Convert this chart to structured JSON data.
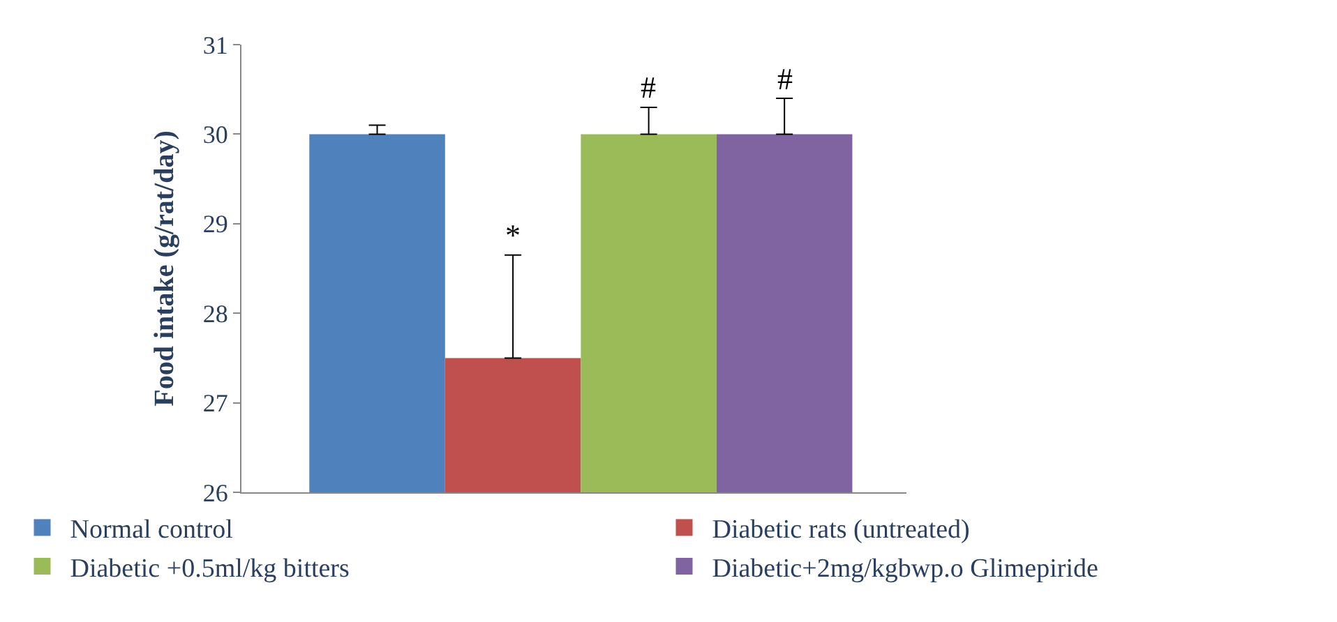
{
  "chart_data": {
    "type": "bar",
    "ylabel": "Food intake (g/rat/day)",
    "categories": [
      null,
      null,
      null,
      null
    ],
    "series": [
      {
        "name": "Normal control",
        "color": "#4f81bd",
        "values": [
          30,
          null,
          null,
          null
        ],
        "errors": [
          [
            30,
            30.1
          ],
          null,
          null,
          null
        ]
      },
      {
        "name": "Diabetic rats (untreated)",
        "color": "#c0504d",
        "values": [
          null,
          27.5,
          null,
          null
        ],
        "errors": [
          null,
          [
            27.5,
            28.65
          ],
          null,
          null
        ]
      },
      {
        "name": "Diabetic +0.5ml/kg bitters",
        "color": "#9bbb59",
        "values": [
          null,
          null,
          30,
          null
        ],
        "errors": [
          null,
          null,
          [
            30,
            30.3
          ],
          null
        ]
      },
      {
        "name": "Diabetic+2mg/kgbwp.o Glimepiride",
        "color": "#8064a2",
        "values": [
          null,
          null,
          null,
          30
        ],
        "errors": [
          null,
          null,
          null,
          [
            30,
            30.4
          ]
        ]
      }
    ],
    "ylim": [
      26,
      31
    ],
    "yticks": [
      26,
      27,
      28,
      29,
      30,
      31
    ],
    "legend": "bottom",
    "annotations": [
      {
        "text": "*",
        "y": 28.65
      },
      {
        "text": "#",
        "y": 30.3
      },
      {
        "text": "#",
        "y": 30.4
      }
    ]
  }
}
